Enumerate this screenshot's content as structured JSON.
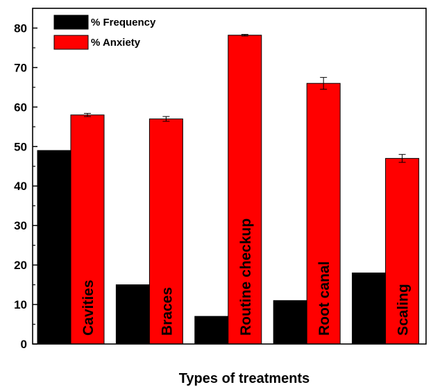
{
  "chart_data": {
    "type": "bar",
    "categories": [
      "Cavities",
      "Braces",
      "Routine checkup",
      "Root canal",
      "Scaling"
    ],
    "series": [
      {
        "name": "% Frequency",
        "values": [
          49,
          15,
          7,
          11,
          18
        ],
        "color": "#000000"
      },
      {
        "name": "% Anxiety",
        "values": [
          58,
          57,
          78.2,
          66,
          47
        ],
        "errors": [
          0.4,
          0.6,
          0.2,
          1.5,
          1.0
        ],
        "color": "#ff0000"
      }
    ],
    "title": "",
    "xlabel": "Types of treatments",
    "ylabel": "",
    "ylim": [
      0,
      85
    ],
    "yticks": [
      0,
      10,
      20,
      30,
      40,
      50,
      60,
      70,
      80
    ],
    "legend": "top-left",
    "grid": false
  }
}
